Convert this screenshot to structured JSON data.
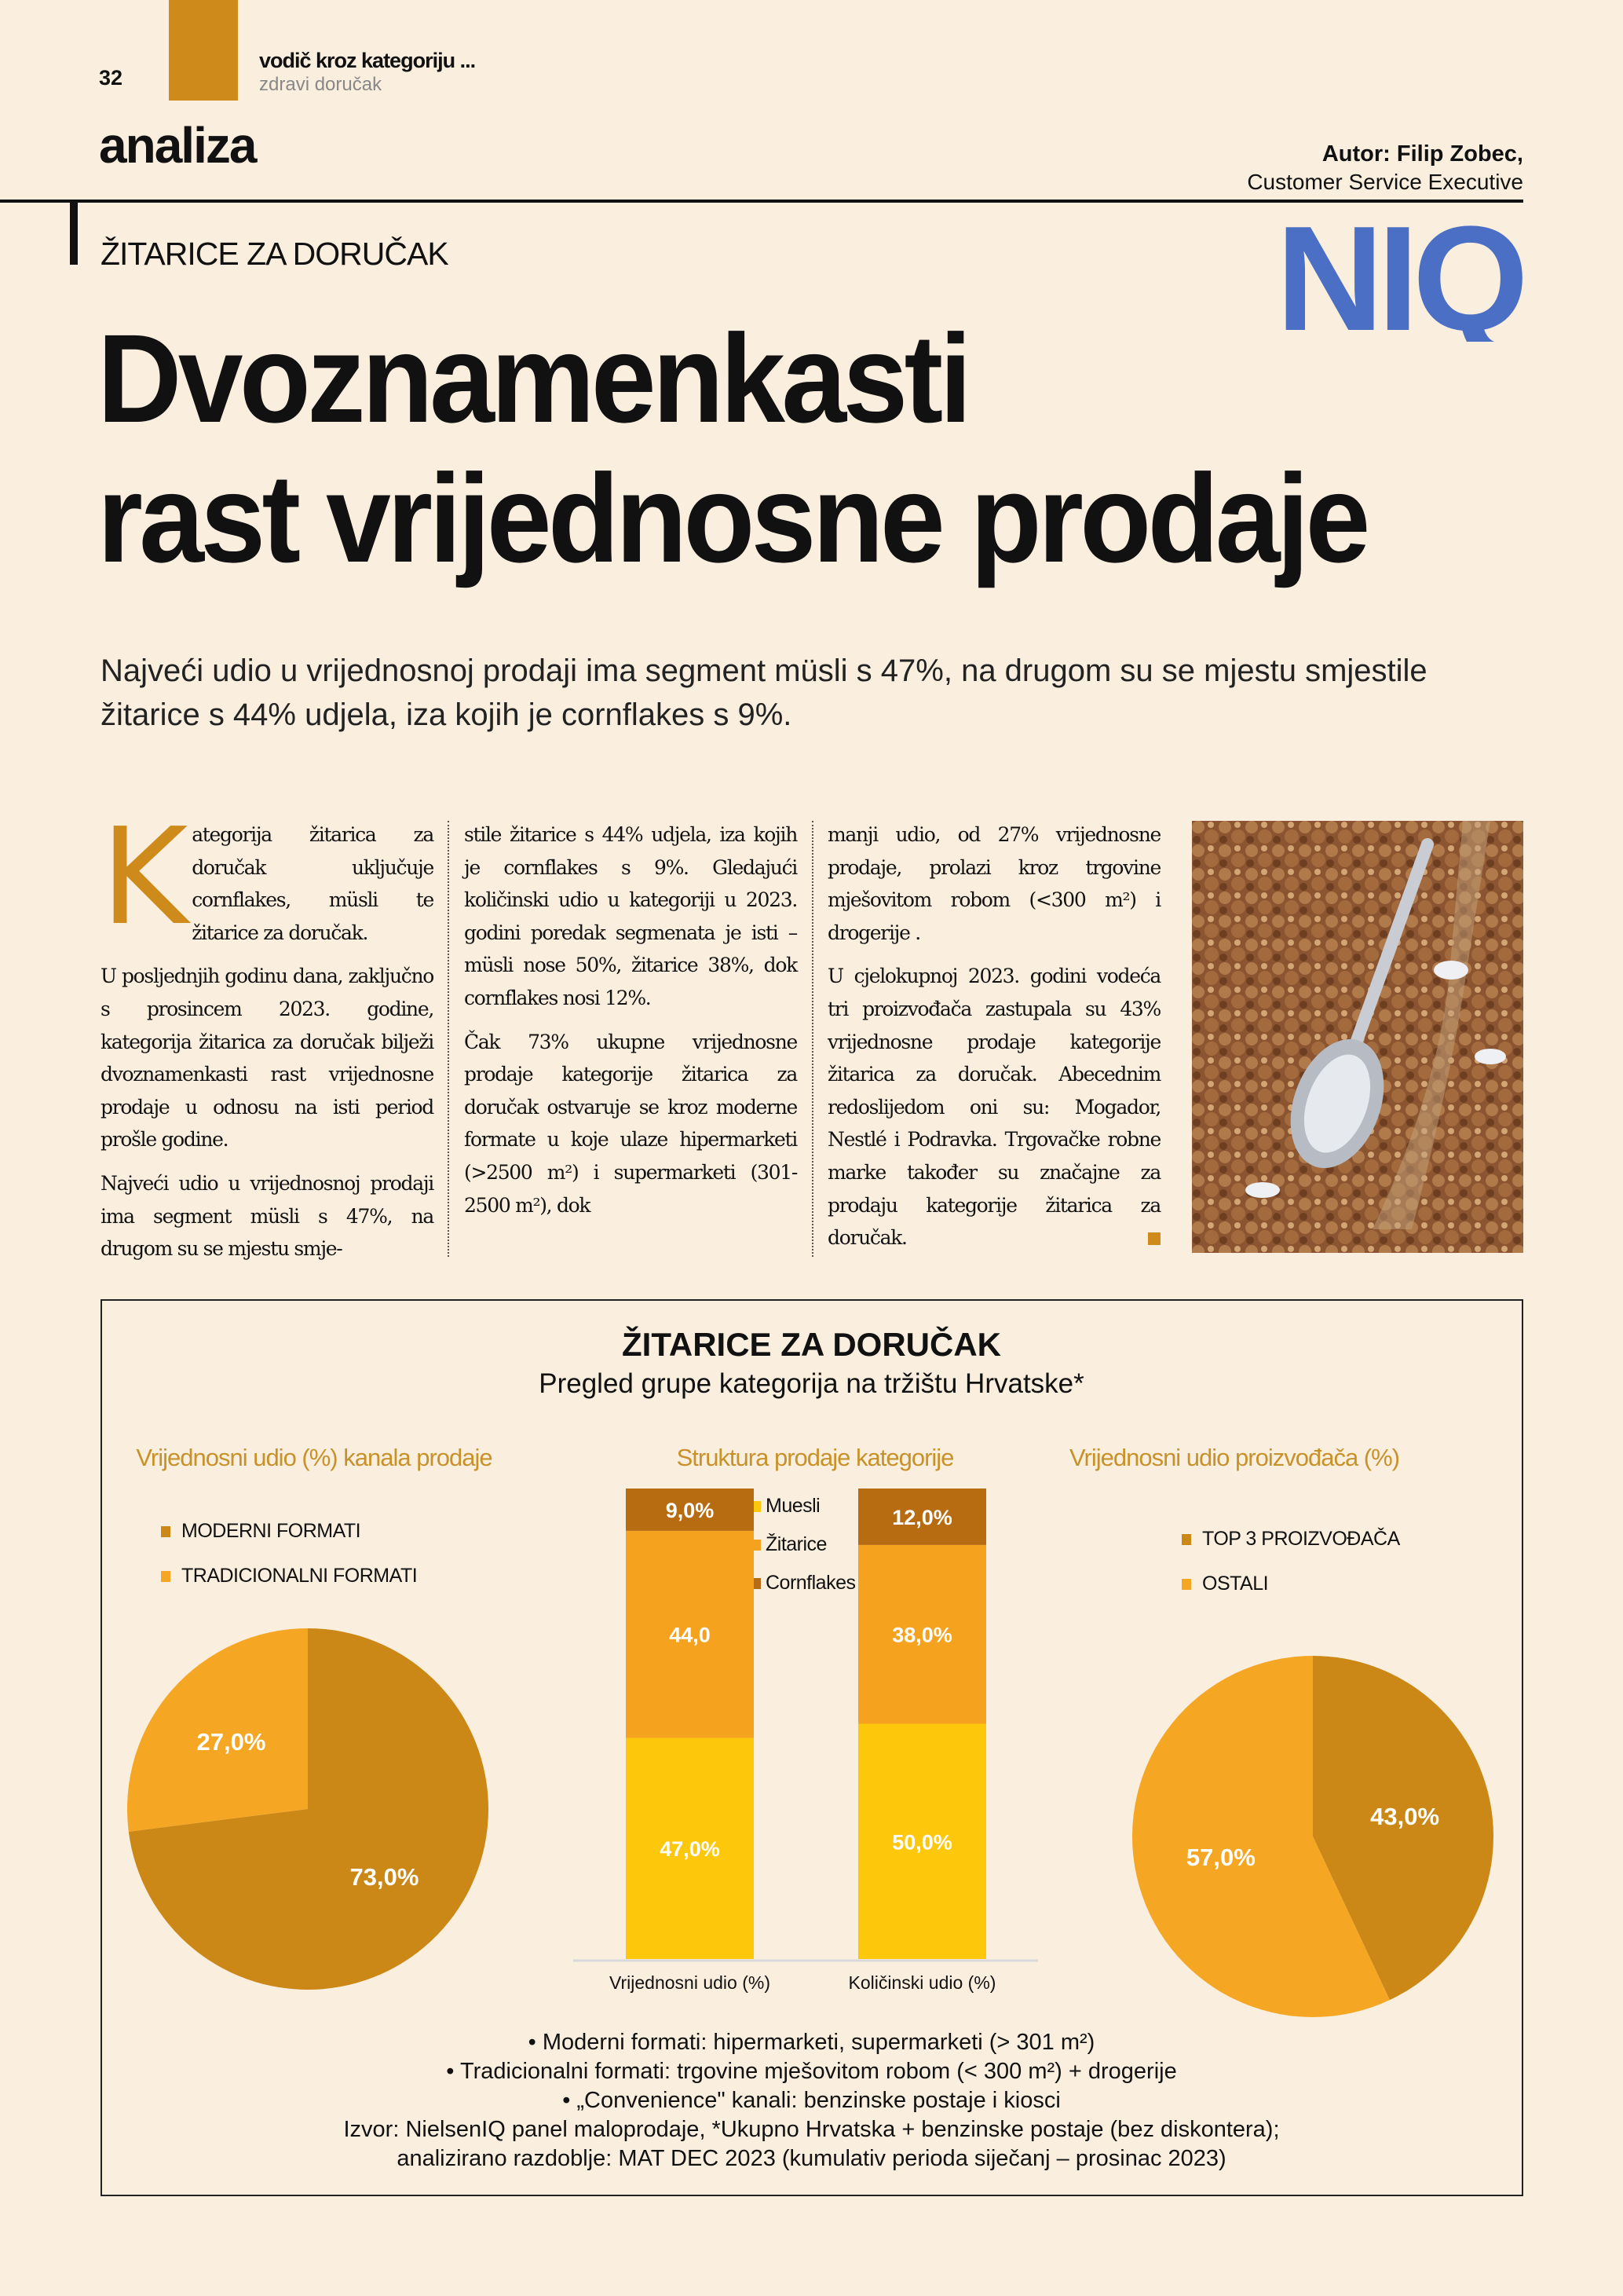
{
  "header": {
    "page_number": "32",
    "section": "vodič kroz kategoriju ...",
    "subsection": "zdravi doručak",
    "rubric": "analiza",
    "author": "Autor: Filip Zobec,",
    "author_role": "Customer Service Executive",
    "logo_text": "NIQ",
    "accent": "#ce8a1a",
    "logo_color": "#4a6fc4"
  },
  "article": {
    "kicker": "ŽITARICE ZA DORUČAK",
    "title_line1": "Dvoznamenkasti",
    "title_line2": "rast vrijednosne prodaje",
    "lead": "Najveći udio u vrijednosnoj prodaji ima segment müsli s 47%, na drugom su se mjestu smjestile žitarice s 44% udjela, iza kojih je cornflakes s 9%.",
    "drop_cap": "K",
    "col1": [
      "ategorija žitarica za doručak uključuje cornflakes, müsli te žitarice za doručak.",
      "U posljednjih godinu dana, zaključno s prosincem 2023. godine, kategorija žitarica za doručak bilježi dvoznamenkasti rast vrijednosne prodaje u odnosu na isti period prošle godine.",
      "Najveći udio u vrijednosnoj prodaji ima segment müsli s 47%, na drugom su se mjestu smje-"
    ],
    "col2": [
      "stile žitarice s 44% udjela, iza kojih je cornflakes s 9%. Gledajući količinski udio u kategoriji u 2023. godini poredak segmenata je isti – müsli nose 50%, žitarice 38%, dok cornflakes nosi 12%.",
      "Čak 73% ukupne vrijednosne prodaje kategorije žitarica za doručak ostvaruje se kroz moderne formate u koje ulaze hipermarketi (>2500 m²) i supermarketi (301-2500 m²), dok"
    ],
    "col3": [
      "manji udio, od 27% vrijednosne prodaje, prolazi kroz trgovine mješovitom robom (<300 m²) i drogerije .",
      "U cjelokupnoj 2023. godini vodeća tri proizvođača zastupala su 43% vrijednosne prodaje kategorije žitarica za doručak. Abecednim redoslijedom oni su: Mogador, Nestlé i Podravka. Trgovačke robne marke također su značajne za prodaju kategorije žitarica za doručak."
    ]
  },
  "infographic": {
    "title": "ŽITARICE ZA DORUČAK",
    "subtitle": "Pregled grupe kategorija na tržištu Hrvatske*",
    "footnotes": [
      "•   Moderni formati: hipermarketi, supermarketi (> 301 m²)",
      "•   Tradicionalni formati: trgovine mješovitom robom (< 300 m²) + drogerije",
      "•   „Convenience\" kanali: benzinske postaje i kiosci",
      "Izvor: NielsenIQ panel maloprodaje, *Ukupno Hrvatska + benzinske postaje (bez diskontera);",
      "analizirano razdoblje: MAT DEC 2023 (kumulativ perioda siječanj – prosinac 2023)"
    ]
  },
  "chart_data": [
    {
      "type": "pie",
      "title": "Vrijednosni udio (%) kanala prodaje",
      "legend_placement": "top-left",
      "slices": [
        {
          "name": "MODERNI FORMATI",
          "value": 73.0,
          "label": "73,0%",
          "color": "#cc8816"
        },
        {
          "name": "TRADICIONALNI FORMATI",
          "value": 27.0,
          "label": "27,0%",
          "color": "#f5a623"
        }
      ]
    },
    {
      "type": "bar",
      "stacked": true,
      "title": "Struktura prodaje kategorije",
      "legend_placement": "top",
      "categories": [
        "Vrijednosni udio (%)",
        "Količinski udio (%)"
      ],
      "ylim": [
        0,
        100
      ],
      "series": [
        {
          "name": "Muesli",
          "values": [
            47.0,
            50.0
          ],
          "labels": [
            "47,0%",
            "50,0%"
          ],
          "color": "#fdc70c"
        },
        {
          "name": "Žitarice",
          "values": [
            44.0,
            38.0
          ],
          "labels": [
            "44,0",
            "38,0%"
          ],
          "color": "#f5a31f"
        },
        {
          "name": "Cornflakes",
          "values": [
            9.0,
            12.0
          ],
          "labels": [
            "9,0%",
            "12,0%"
          ],
          "color": "#b86c12"
        }
      ]
    },
    {
      "type": "pie",
      "title": "Vrijednosni udio proizvođača (%)",
      "legend_placement": "top-left",
      "slices": [
        {
          "name": "TOP 3 PROIZVOĐAČA",
          "value": 43.0,
          "label": "43,0%",
          "color": "#cc8816"
        },
        {
          "name": "OSTALI",
          "value": 57.0,
          "label": "57,0%",
          "color": "#f5a623"
        }
      ]
    }
  ]
}
